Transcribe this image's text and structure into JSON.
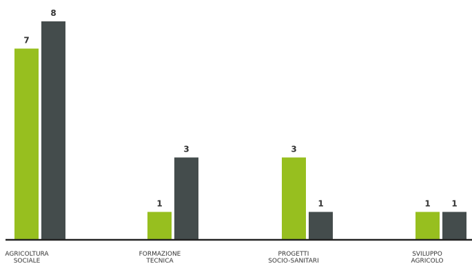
{
  "chart_data": {
    "type": "bar",
    "title": "",
    "xlabel": "",
    "ylabel": "",
    "ylim": [
      0,
      8
    ],
    "categories": [
      [
        "AGRICOLTURA",
        "SOCIALE"
      ],
      [
        "FORMAZIONE",
        "TECNICA"
      ],
      [
        "PROGETTI",
        "SOCIO-SANITARI"
      ],
      [
        "SVILUPPO",
        "AGRICOLO"
      ]
    ],
    "series": [
      {
        "values": [
          7,
          1,
          3,
          1
        ],
        "color": "#97bf1f"
      },
      {
        "values": [
          8,
          3,
          1,
          1
        ],
        "color": "#444c4c"
      }
    ],
    "grid": false,
    "legend": "none",
    "axis_color": "#222222"
  }
}
